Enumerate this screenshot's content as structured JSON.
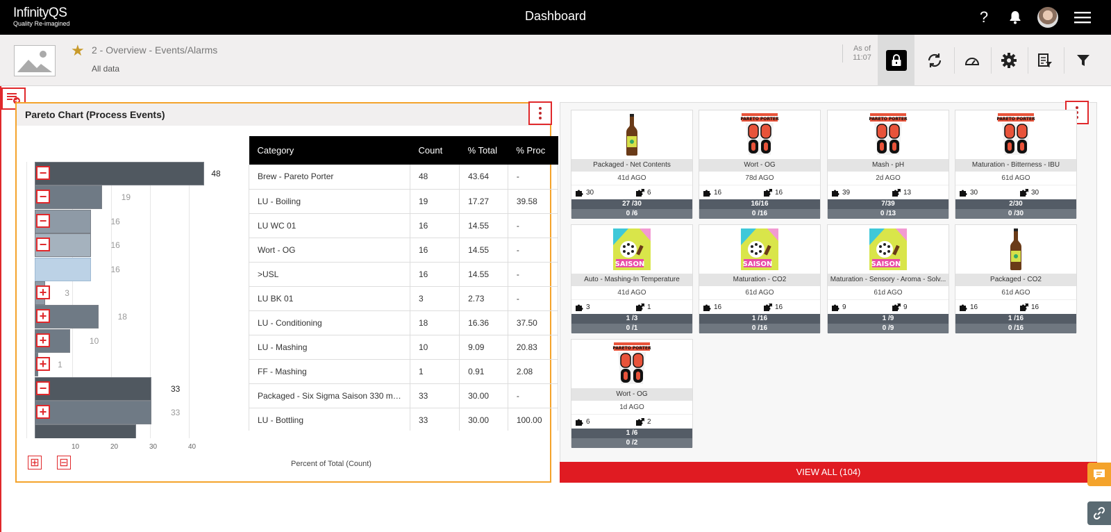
{
  "app": {
    "brand": "InfinityQS",
    "tagline": "Quality Re-imagined",
    "title": "Dashboard"
  },
  "header_icons": {
    "help": "?",
    "bell": "bell-icon",
    "avatar": "user-avatar",
    "menu": "hamburger-icon"
  },
  "subheader": {
    "breadcrumb": "2 - Overview - Events/Alarms",
    "subtitle": "All data",
    "asof_label": "As of",
    "asof_time": "11:07"
  },
  "colors": {
    "accent": "#e0282b",
    "highlight": "#f4a32b",
    "star": "#c89a2a"
  },
  "pareto": {
    "title": "Pareto Chart (Process Events)",
    "xlabel": "Percent of Total (Count)",
    "xticks": [
      "10",
      "20",
      "30",
      "40"
    ],
    "columns": [
      "Category",
      "Count",
      "% Total",
      "% Proc"
    ],
    "rows": [
      {
        "category": "Brew - Pareto Porter",
        "count": "48",
        "total": "43.64",
        "proc": "-"
      },
      {
        "category": "LU - Boiling",
        "count": "19",
        "total": "17.27",
        "proc": "39.58"
      },
      {
        "category": "LU WC 01",
        "count": "16",
        "total": "14.55",
        "proc": "-"
      },
      {
        "category": "Wort - OG",
        "count": "16",
        "total": "14.55",
        "proc": "-"
      },
      {
        "category": ">USL",
        "count": "16",
        "total": "14.55",
        "proc": "-"
      },
      {
        "category": "LU BK 01",
        "count": "3",
        "total": "2.73",
        "proc": "-"
      },
      {
        "category": "LU - Conditioning",
        "count": "18",
        "total": "16.36",
        "proc": "37.50"
      },
      {
        "category": "LU - Mashing",
        "count": "10",
        "total": "9.09",
        "proc": "20.83"
      },
      {
        "category": "FF - Mashing",
        "count": "1",
        "total": "0.91",
        "proc": "2.08"
      },
      {
        "category": "Packaged - Six Sigma Saison 330 ml Gl...",
        "count": "33",
        "total": "30.00",
        "proc": "-"
      },
      {
        "category": "LU - Bottling",
        "count": "33",
        "total": "30.00",
        "proc": "100.00"
      }
    ]
  },
  "chart_data": {
    "type": "bar",
    "orientation": "horizontal",
    "categories": [
      "Brew - Pareto Porter",
      "LU - Boiling",
      "LU WC 01",
      "Wort - OG",
      ">USL",
      "LU BK 01",
      "LU - Conditioning",
      "LU - Mashing",
      "FF - Mashing",
      "Packaged - Six Sigma Saison 330 ml Gl...",
      "LU - Bottling"
    ],
    "values": [
      48,
      19,
      16,
      16,
      16,
      3,
      18,
      10,
      1,
      33,
      33
    ],
    "percent_total": [
      43.64,
      17.27,
      14.55,
      14.55,
      14.55,
      2.73,
      16.36,
      9.09,
      0.91,
      30.0,
      30.0
    ],
    "xlabel": "Percent of Total (Count)",
    "xlim": [
      0,
      50
    ],
    "expand_state": [
      "minus",
      "minus",
      "minus",
      "minus",
      "none",
      "plus",
      "plus",
      "plus",
      "plus",
      "minus",
      "plus"
    ],
    "bar_colors": [
      "#505860",
      "#6f7a85",
      "#8e9aa6",
      "#a5b2be",
      "#bcd2e6",
      "#8e9aa6",
      "#6f7a85",
      "#6f7a85",
      "#6f7a85",
      "#505860",
      "#6f7a85"
    ]
  },
  "events": {
    "view_all": "VIEW ALL (104)",
    "cards": [
      {
        "image": "bottle",
        "name": "Packaged - Net Contents",
        "ago": "41d AGO",
        "a": "30",
        "b": "6",
        "r1": "27 /30",
        "r2": "0 /6"
      },
      {
        "image": "porter",
        "name": "Wort - OG",
        "ago": "78d AGO",
        "a": "16",
        "b": "16",
        "r1": "16/16",
        "r2": "0 /16"
      },
      {
        "image": "porter",
        "name": "Mash - pH",
        "ago": "2d AGO",
        "a": "39",
        "b": "13",
        "r1": "7/39",
        "r2": "0 /13"
      },
      {
        "image": "porter",
        "name": "Maturation - Bitterness - IBU",
        "ago": "61d AGO",
        "a": "30",
        "b": "30",
        "r1": "2/30",
        "r2": "0 /30"
      },
      {
        "image": "saison",
        "name": "Auto - Mashing-In Temperature",
        "ago": "41d AGO",
        "a": "3",
        "b": "1",
        "r1": "1 /3",
        "r2": "0 /1"
      },
      {
        "image": "saison",
        "name": "Maturation - CO2",
        "ago": "61d AGO",
        "a": "16",
        "b": "16",
        "r1": "1 /16",
        "r2": "0 /16"
      },
      {
        "image": "saison",
        "name": "Maturation - Sensory - Aroma - Solv...",
        "ago": "61d AGO",
        "a": "9",
        "b": "9",
        "r1": "1 /9",
        "r2": "0 /9"
      },
      {
        "image": "bottle",
        "name": "Packaged - CO2",
        "ago": "61d AGO",
        "a": "16",
        "b": "16",
        "r1": "1 /16",
        "r2": "0 /16"
      },
      {
        "image": "porter",
        "name": "Wort - OG",
        "ago": "1d AGO",
        "a": "6",
        "b": "2",
        "r1": "1 /6",
        "r2": "0 /2"
      }
    ]
  }
}
